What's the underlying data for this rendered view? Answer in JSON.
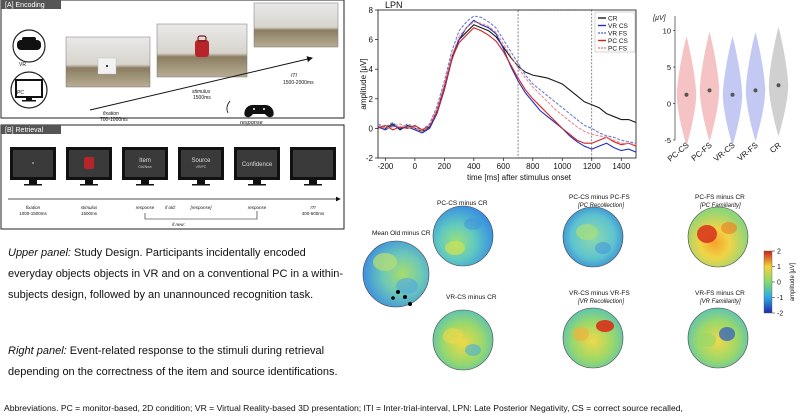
{
  "encoding": {
    "header": "[A] Encoding",
    "devices": [
      "VR",
      "PC"
    ],
    "steps": [
      {
        "label": "fixation",
        "time": "700-1000ms"
      },
      {
        "label": "stimulus",
        "time": "1500ms"
      },
      {
        "label": "ITI",
        "time": "1500-2000ms"
      }
    ],
    "response_label": "response"
  },
  "retrieval": {
    "header": "[B] Retrieval",
    "screens": [
      {
        "title": "",
        "sub": "",
        "label": "fixation",
        "time": "1000-1500ms"
      },
      {
        "title": "",
        "sub": "",
        "label": "stimulus",
        "time": "1500ms"
      },
      {
        "title": "Item",
        "sub": "Old/New",
        "label": "response",
        "time": ""
      },
      {
        "title": "Source",
        "sub": "VR/PC",
        "label": "[response]",
        "time": ""
      },
      {
        "title": "Confidence",
        "sub": "",
        "label": "response",
        "time": ""
      },
      {
        "title": "",
        "sub": "",
        "label": "ITI",
        "time": "400-600ms"
      }
    ],
    "if_old": "if old:",
    "if_new": "if new:"
  },
  "upper_caption": {
    "lead": "Upper panel:",
    "text": " Study Design. Participants incidentally encoded everyday objects objects in VR and on a conventional PC in a within-subjects design, followed by an unannounced recognition task."
  },
  "right_caption": {
    "lead": "Right panel:",
    "text": " Event-related response to the stimuli during retrieval depending on the correctness of the item and source identifications."
  },
  "abbreviations": "Abbreviations. PC = monitor-based, 2D condition; VR = Virtual Reality-based 3D presentation; ITI = Inter-trial-interval, LPN: Late Posterior Negativity, CS = correct source recalled,",
  "colors": {
    "CR": "#1a1a1a",
    "VR_CS": "#1f2fbf",
    "VR_FS": "#6f7ad8",
    "PC_CS": "#d42020",
    "PC_FS": "#e88a8a"
  },
  "chart_data": [
    {
      "type": "line",
      "title": "LPN",
      "xlabel": "time [ms] after stimulus onset",
      "ylabel": "amplitude [µV]",
      "xlim": [
        -250,
        1500
      ],
      "ylim": [
        -2,
        8
      ],
      "xticks": [
        -200,
        0,
        200,
        400,
        600,
        800,
        1000,
        1200,
        1400
      ],
      "yticks": [
        -2,
        0,
        2,
        4,
        6,
        8
      ],
      "window_ms": [
        700,
        1200
      ],
      "x": [
        -250,
        -200,
        -150,
        -100,
        -50,
        0,
        50,
        100,
        150,
        200,
        250,
        300,
        350,
        400,
        450,
        500,
        550,
        600,
        650,
        700,
        750,
        800,
        850,
        900,
        950,
        1000,
        1050,
        1100,
        1150,
        1200,
        1250,
        1300,
        1350,
        1400,
        1450,
        1500
      ],
      "series": [
        {
          "name": "CR",
          "values": [
            0.2,
            0.0,
            0.3,
            -0.1,
            0.2,
            0.0,
            -0.2,
            0.1,
            1.2,
            2.8,
            4.8,
            6.0,
            6.5,
            7.0,
            6.8,
            6.6,
            6.2,
            5.5,
            4.8,
            4.2,
            3.8,
            3.6,
            3.5,
            3.4,
            3.2,
            3.0,
            2.6,
            2.2,
            1.8,
            1.6,
            1.4,
            1.0,
            0.8,
            0.6,
            0.6,
            0.4
          ]
        },
        {
          "name": "VR CS",
          "values": [
            0.1,
            -0.1,
            0.2,
            0.0,
            0.1,
            -0.1,
            -0.3,
            0.0,
            1.0,
            2.6,
            4.6,
            6.0,
            6.8,
            7.3,
            7.0,
            6.8,
            6.4,
            5.4,
            4.2,
            3.2,
            2.4,
            1.8,
            1.2,
            0.8,
            0.4,
            0.0,
            -0.5,
            -0.9,
            -1.2,
            -1.4,
            -1.2,
            -1.0,
            -1.3,
            -1.5,
            -1.4,
            -1.6
          ]
        },
        {
          "name": "VR FS",
          "values": [
            0.3,
            0.1,
            0.4,
            0.0,
            0.3,
            0.1,
            -0.1,
            0.3,
            1.5,
            3.2,
            5.2,
            6.6,
            7.2,
            7.6,
            7.5,
            7.2,
            6.8,
            6.0,
            5.2,
            4.4,
            3.6,
            3.0,
            2.6,
            2.2,
            1.8,
            1.4,
            1.0,
            0.6,
            0.2,
            0.0,
            -0.3,
            -0.5,
            -0.6,
            -0.8,
            -0.9,
            -1.0
          ]
        },
        {
          "name": "PC CS",
          "values": [
            0.0,
            0.2,
            -0.1,
            0.1,
            0.0,
            0.2,
            -0.1,
            0.2,
            1.1,
            2.7,
            4.7,
            5.8,
            6.3,
            6.8,
            6.6,
            6.3,
            5.9,
            5.2,
            4.3,
            3.4,
            2.6,
            2.0,
            1.5,
            1.0,
            0.5,
            0.0,
            -0.4,
            -0.8,
            -1.0,
            -1.0,
            -0.8,
            -0.6,
            -0.9,
            -1.1,
            -1.0,
            -1.2
          ]
        },
        {
          "name": "PC FS",
          "values": [
            0.2,
            0.0,
            0.1,
            0.3,
            0.1,
            0.0,
            -0.2,
            0.2,
            1.3,
            3.0,
            4.9,
            6.2,
            6.8,
            7.2,
            7.1,
            6.9,
            6.5,
            5.7,
            4.9,
            4.1,
            3.4,
            2.8,
            2.3,
            1.8,
            1.3,
            0.9,
            0.5,
            0.1,
            -0.2,
            -0.4,
            -0.5,
            -0.6,
            -0.8,
            -1.0,
            -1.0,
            -1.1
          ]
        }
      ]
    },
    {
      "type": "violin",
      "unit": "[µV]",
      "ylim": [
        -5,
        12
      ],
      "yticks": [
        -5,
        0,
        5,
        10
      ],
      "categories": [
        "PC-CS",
        "PC-FS",
        "VR-CS",
        "VR-FS",
        "CR"
      ],
      "medians": [
        1.2,
        1.8,
        1.2,
        1.8,
        2.5
      ],
      "colors": [
        "#f3b8b8",
        "#f3b8b8",
        "#b9bff0",
        "#b9bff0",
        "#c8c8c8"
      ]
    },
    {
      "type": "heatmap",
      "kind": "topographic scalp maps",
      "colorbar": {
        "label": "amplitude [µV]",
        "min": -2,
        "max": 2,
        "ticks": [
          -2,
          -1,
          0,
          1,
          2
        ]
      },
      "maps": [
        {
          "title": "Mean Old minus CR",
          "subtitle": ""
        },
        {
          "title": "PC-CS minus CR",
          "subtitle": ""
        },
        {
          "title": "PC-CS minus PC-FS",
          "subtitle": "[PC Recollection]"
        },
        {
          "title": "PC-FS minus CR",
          "subtitle": "[PC Familiarity]"
        },
        {
          "title": "VR-CS minus CR",
          "subtitle": ""
        },
        {
          "title": "VR-CS minus VR-FS",
          "subtitle": "[VR Recollection]"
        },
        {
          "title": "VR-FS minus CR",
          "subtitle": "[VR Familiarity]"
        }
      ]
    }
  ]
}
